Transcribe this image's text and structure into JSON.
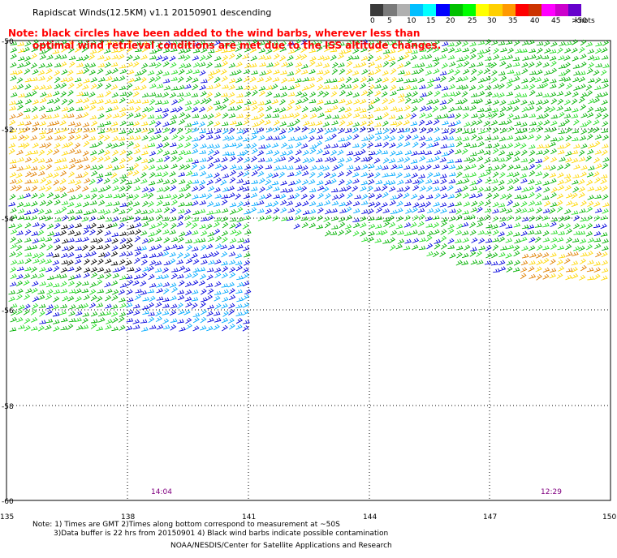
{
  "title": "Rapidscat Winds(12.5KM) v1.1 20150901 descending",
  "note_line1": "Note: black circles have been added to the wind barbs, wherever less than",
  "note_line2": "optimal wind retrieval conditions are met due to the ISS altitude changes.",
  "scale": {
    "labels": [
      "0",
      "5",
      "10",
      "15",
      "20",
      "25",
      "30",
      "35",
      "40",
      "45",
      ">50"
    ],
    "unit": "knots",
    "colors": [
      "#3a3a3a",
      "#7a7a7a",
      "#b0b0b0",
      "#00bfff",
      "#00ffff",
      "#0000ff",
      "#00c000",
      "#00ff00",
      "#ffff00",
      "#ffd000",
      "#ff9900",
      "#ff0000",
      "#cc3300",
      "#ff00ff",
      "#cc00cc",
      "#6600cc"
    ]
  },
  "axes": {
    "lat_labels": [
      "-50",
      "-52",
      "-54",
      "-56",
      "-58",
      "-60"
    ],
    "lon_labels": [
      "135",
      "138",
      "141",
      "144",
      "147",
      "150"
    ]
  },
  "time_labels": {
    "left": "14:04",
    "right": "12:29",
    "color": "#800080"
  },
  "footer": {
    "line1": "Note: 1) Times are GMT 2)Times along bottom correspond to measurement at ~50S",
    "line2": "3)Data buffer is 22 hrs from 20150901 4) Black wind barbs indicate possible contamination",
    "credit": "NOAA/NESDIS/Center for Satellite Applications and Research"
  },
  "wind_colors": {
    "green": "#00b000",
    "lightgreen": "#22dd22",
    "blue": "#0000dd",
    "cyan": "#00aaff",
    "yellow": "#ffd700",
    "orange": "#e08000",
    "black": "#000000"
  }
}
